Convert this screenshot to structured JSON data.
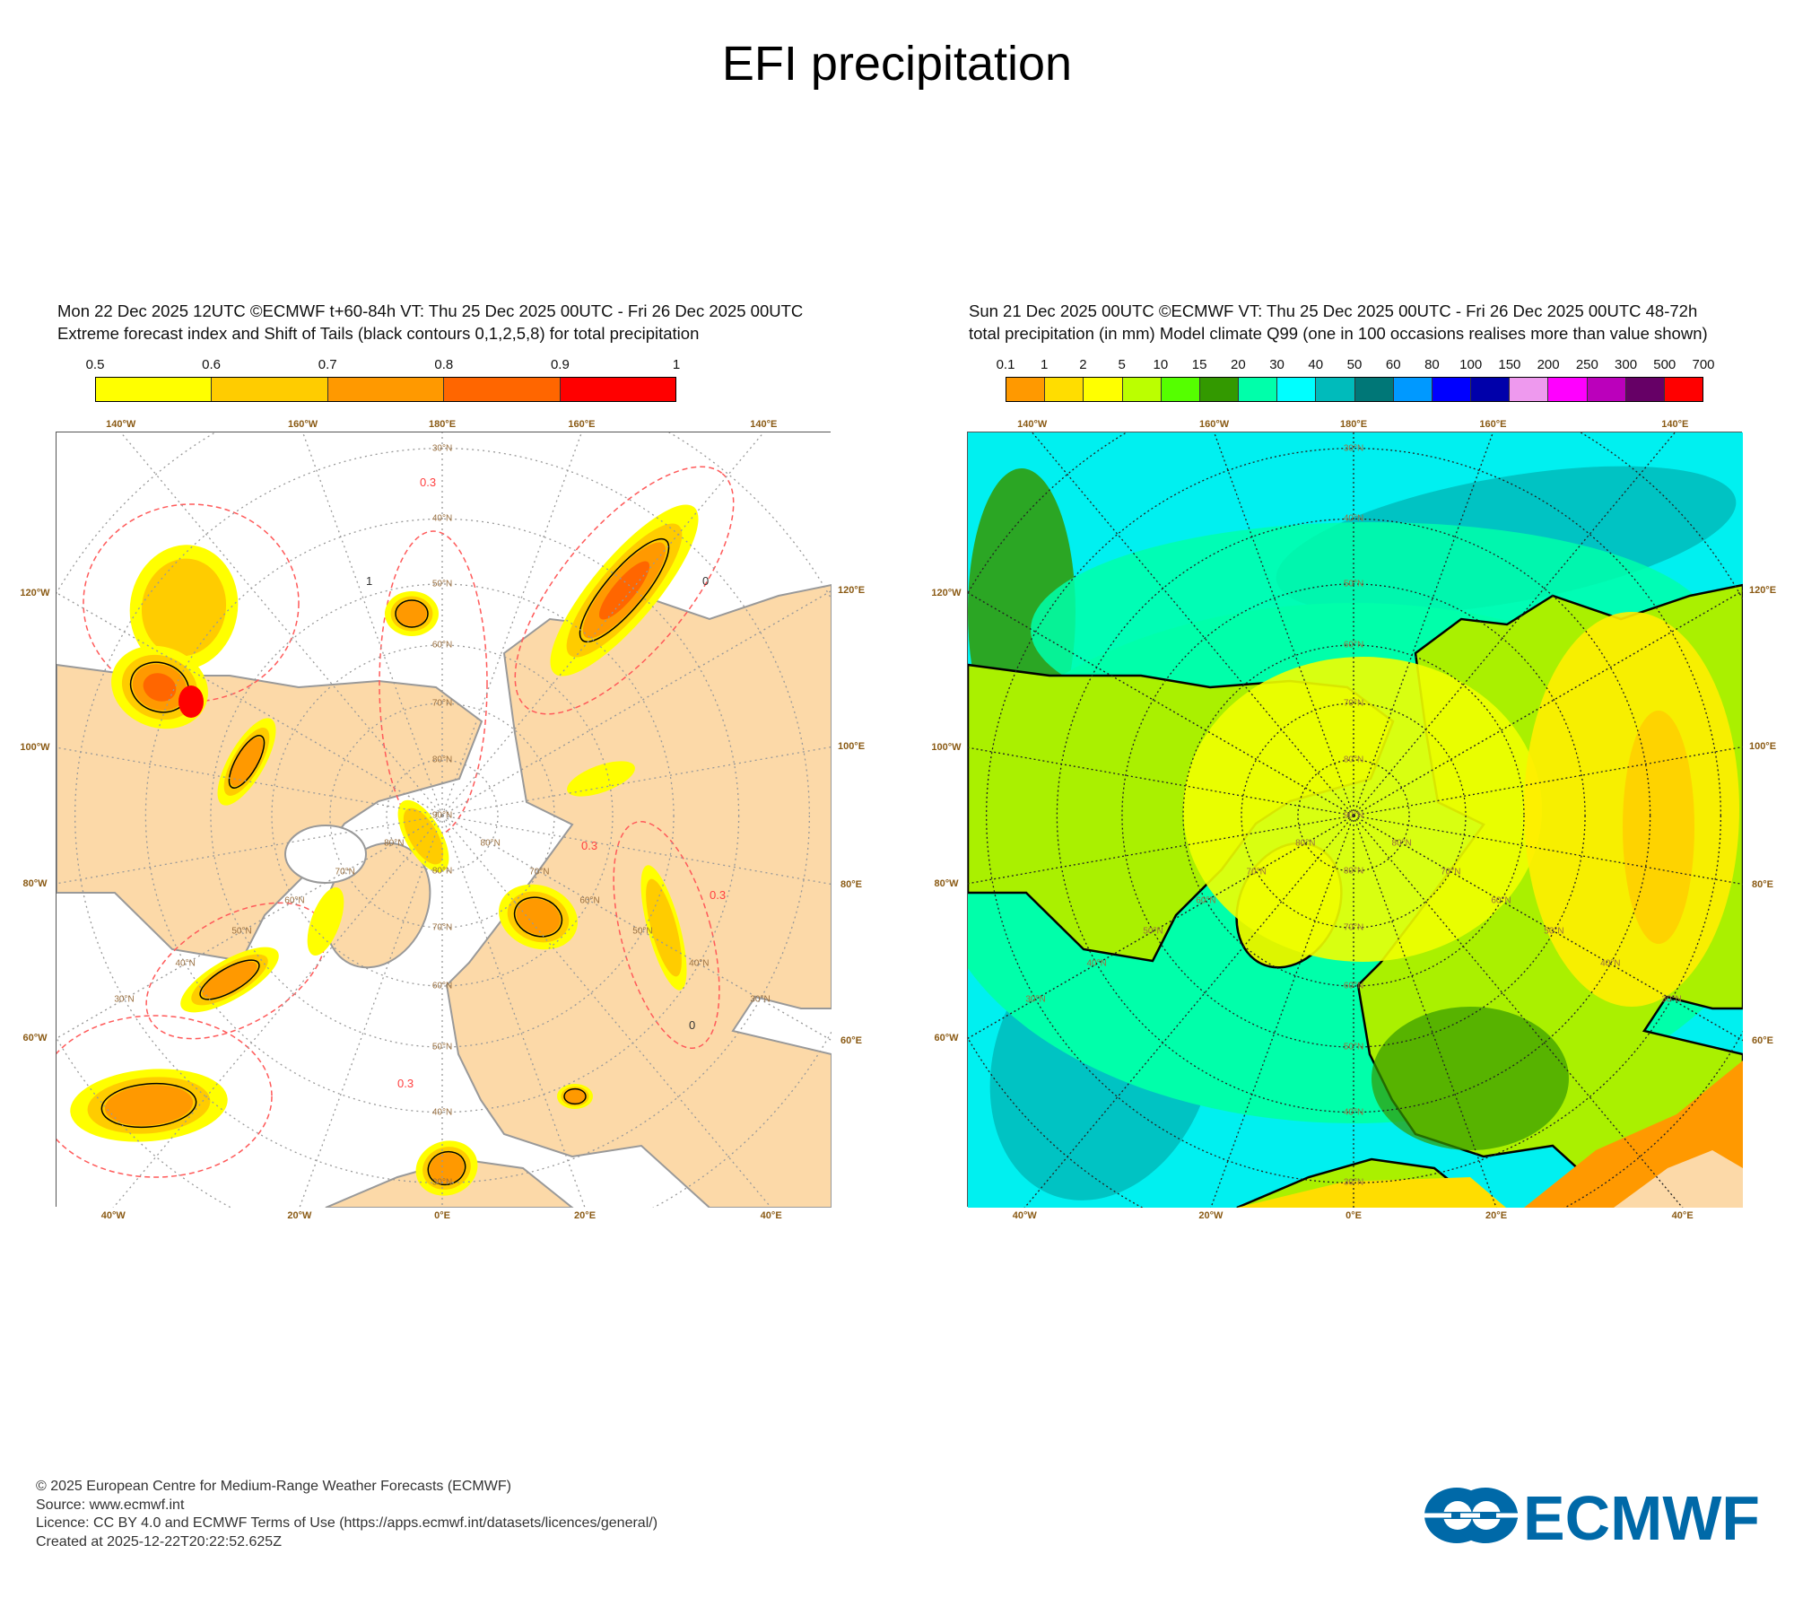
{
  "title": "EFI precipitation",
  "panels": [
    {
      "header_line1": "Mon 22 Dec 2025 12UTC ©ECMWF t+60-84h  VT: Thu 25 Dec 2025 00UTC - Fri 26 Dec 2025 00UTC",
      "header_line2": "Extreme forecast index and Shift of Tails (black contours 0,1,2,5,8) for total precipitation",
      "colorbar": {
        "labels": [
          "0.5",
          "0.6",
          "0.7",
          "0.8",
          "0.9",
          "1"
        ],
        "colors": [
          "#ffff00",
          "#ffcc00",
          "#ff9900",
          "#ff6600",
          "#ff0000"
        ]
      },
      "contour_labels": [
        "0.3",
        "0.3",
        "0.3",
        "0.3",
        "0",
        "0",
        "1"
      ]
    },
    {
      "header_line1": "Sun 21 Dec 2025 00UTC ©ECMWF VT: Thu 25 Dec 2025 00UTC - Fri 26 Dec 2025 00UTC   48-72h",
      "header_line2": "total precipitation (in mm)  Model climate Q99 (one in 100 occasions realises more than value shown)",
      "colorbar": {
        "labels": [
          "0.1",
          "1",
          "2",
          "5",
          "10",
          "15",
          "20",
          "30",
          "40",
          "50",
          "60",
          "80",
          "100",
          "150",
          "200",
          "250",
          "300",
          "500",
          "700"
        ],
        "colors": [
          "#ff9900",
          "#ffdd00",
          "#ffff00",
          "#bbff00",
          "#55ff00",
          "#339900",
          "#00ffaa",
          "#00ffff",
          "#00bbbb",
          "#007777",
          "#0099ff",
          "#0000ff",
          "#0000aa",
          "#ee99ee",
          "#ff00ff",
          "#bb00bb",
          "#660066",
          "#ff0000"
        ]
      }
    }
  ],
  "map_axes": {
    "top": [
      {
        "label": "140°W",
        "lon": -140
      },
      {
        "label": "160°W",
        "lon": -160
      },
      {
        "label": "180°E",
        "lon": 180
      },
      {
        "label": "160°E",
        "lon": 160
      },
      {
        "label": "140°E",
        "lon": 140
      }
    ],
    "bottom": [
      {
        "label": "40°W",
        "lon": -40
      },
      {
        "label": "20°W",
        "lon": -20
      },
      {
        "label": "0°E",
        "lon": 0
      },
      {
        "label": "20°E",
        "lon": 20
      },
      {
        "label": "40°E",
        "lon": 40
      }
    ],
    "left": [
      {
        "label": "120°W",
        "lon": -120
      },
      {
        "label": "100°W",
        "lon": -100
      },
      {
        "label": "80°W",
        "lon": -80
      },
      {
        "label": "60°W",
        "lon": -60
      }
    ],
    "right": [
      {
        "label": "120°E",
        "lon": 120
      },
      {
        "label": "100°E",
        "lon": 100
      },
      {
        "label": "80°E",
        "lon": 80
      },
      {
        "label": "60°E",
        "lon": 60
      }
    ],
    "lat_labels": [
      {
        "label": "30°N",
        "lat": 30
      },
      {
        "label": "40°N",
        "lat": 40
      },
      {
        "label": "50°N",
        "lat": 50
      },
      {
        "label": "60°N",
        "lat": 60
      },
      {
        "label": "70°N",
        "lat": 70
      },
      {
        "label": "80°N",
        "lat": 80
      }
    ],
    "pole_label": "90°N"
  },
  "footer": {
    "copyright": "© 2025 European Centre for Medium-Range Weather Forecasts (ECMWF)",
    "source": "Source: www.ecmwf.int",
    "licence": "Licence: CC BY 4.0 and ECMWF Terms of Use (https://apps.ecmwf.int/datasets/licences/general/)",
    "created": "Created at 2025-12-22T20:22:52.625Z"
  },
  "logo": {
    "text": "ECMWF",
    "color": "#0069a8"
  }
}
